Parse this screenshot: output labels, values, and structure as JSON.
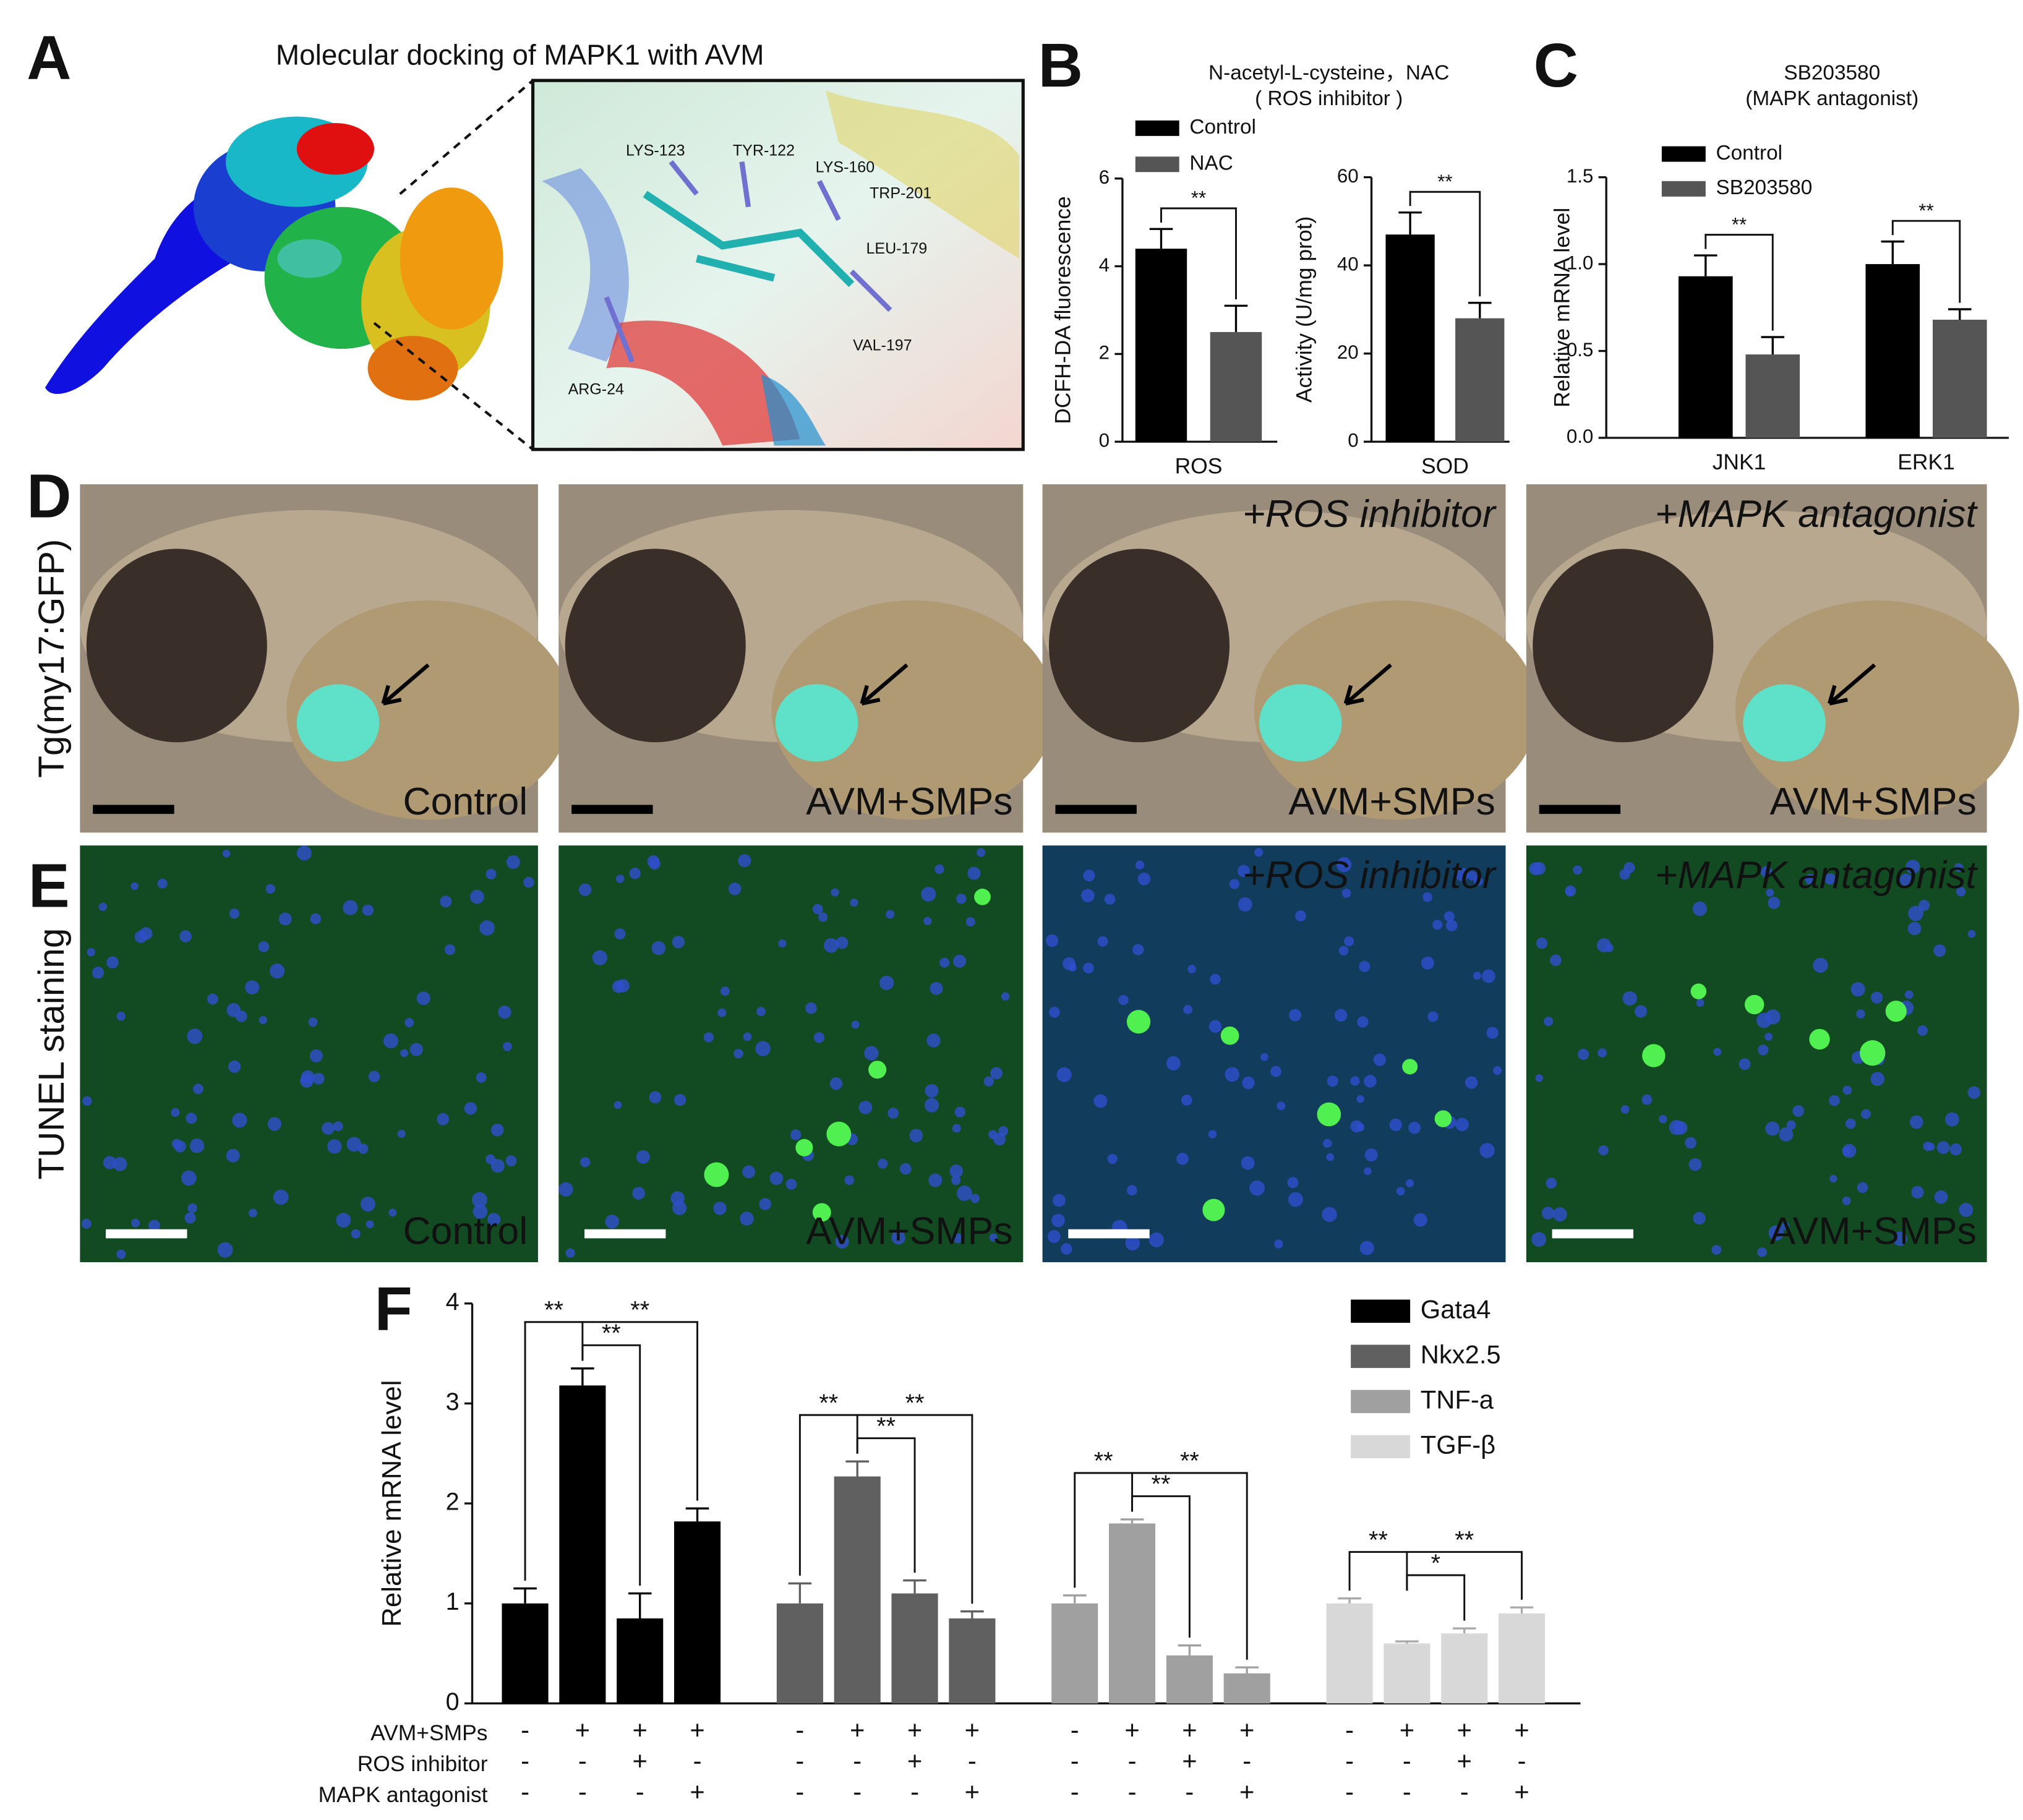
{
  "panels": {
    "A": {
      "label": "A",
      "title": "Molecular docking of MAPK1 with AVM",
      "residues": [
        "LYS-123",
        "TYR-122",
        "LYS-160",
        "TRP-201",
        "LEU-179",
        "VAL-197",
        "ARG-24"
      ]
    },
    "B": {
      "label": "B"
    },
    "C": {
      "label": "C"
    },
    "D": {
      "label": "D",
      "row_label": "Tg(my17:GFP)",
      "images": [
        {
          "caption": "Control"
        },
        {
          "caption": "AVM+SMPs"
        },
        {
          "treatment": "+ROS inhibitor",
          "caption": "AVM+SMPs"
        },
        {
          "treatment": "+MAPK antagonist",
          "caption": "AVM+SMPs"
        }
      ]
    },
    "E": {
      "label": "E",
      "row_label": "TUNEL staining",
      "images": [
        {
          "caption": "Control"
        },
        {
          "caption": "AVM+SMPs"
        },
        {
          "treatment": "+ROS inhibitor",
          "caption": ""
        },
        {
          "treatment": "+MAPK antagonist",
          "caption": "AVM+SMPs"
        }
      ]
    },
    "F": {
      "label": "F"
    }
  },
  "chart_data": [
    {
      "type": "bar",
      "title": [
        "N-acetyl-L-cysteine，NAC",
        "( ROS inhibitor )"
      ],
      "y_label": "DCFH-DA fluorescence",
      "categories": [
        "ROS"
      ],
      "series": [
        {
          "name": "Control",
          "color": "#000000",
          "values": [
            4.4
          ],
          "errors": [
            0.45
          ]
        },
        {
          "name": "NAC",
          "color": "#555555",
          "values": [
            2.5
          ],
          "errors": [
            0.6
          ]
        }
      ],
      "significance": [
        "**"
      ],
      "ylim": [
        0,
        6
      ],
      "yticks": [
        0,
        2,
        4,
        6
      ]
    },
    {
      "type": "bar",
      "y_label": "Activity (U/mg prot)",
      "categories": [
        "SOD"
      ],
      "series": [
        {
          "color": "#000000",
          "values": [
            47
          ],
          "errors": [
            5
          ]
        },
        {
          "color": "#555555",
          "values": [
            28
          ],
          "errors": [
            3.5
          ]
        }
      ],
      "significance": [
        "**"
      ],
      "ylim": [
        0,
        60
      ],
      "yticks": [
        0,
        20,
        40,
        60
      ]
    },
    {
      "type": "bar",
      "title": [
        "SB203580",
        "(MAPK antagonist)"
      ],
      "y_label": "Relative mRNA level",
      "categories": [
        "JNK1",
        "ERK1"
      ],
      "series": [
        {
          "name": "Control",
          "color": "#000000",
          "values": [
            0.93,
            1.0
          ],
          "errors": [
            0.12,
            0.13
          ]
        },
        {
          "name": "SB203580",
          "color": "#555555",
          "values": [
            0.48,
            0.68
          ],
          "errors": [
            0.1,
            0.06
          ]
        }
      ],
      "significance": [
        "**",
        "**"
      ],
      "ylim": [
        0,
        1.5
      ],
      "yticks": [
        {
          "value": 0,
          "label": "0.0"
        },
        0.5,
        {
          "value": 1,
          "label": "1.0"
        },
        1.5
      ]
    },
    {
      "type": "bar_conditions",
      "y_label": "Relative mRNA level",
      "series": [
        {
          "name": "Gata4",
          "color": "#000000",
          "values": [
            1.0,
            3.18,
            0.85,
            1.82
          ],
          "errors": [
            0.15,
            0.17,
            0.25,
            0.13
          ],
          "significance": [
            "**",
            "**",
            "**"
          ]
        },
        {
          "name": "Nkx2.5",
          "color": "#606060",
          "values": [
            1.0,
            2.27,
            1.1,
            0.85
          ],
          "errors": [
            0.2,
            0.15,
            0.13,
            0.07
          ],
          "significance": [
            "**",
            "**",
            "**"
          ]
        },
        {
          "name": "TNF-a",
          "color": "#a0a0a0",
          "values": [
            1.0,
            1.8,
            0.48,
            0.3
          ],
          "errors": [
            0.08,
            0.04,
            0.1,
            0.06
          ],
          "significance": [
            "**",
            "**",
            "**"
          ]
        },
        {
          "name": "TGF-β",
          "color": "#d8d8d8",
          "values": [
            1.0,
            0.6,
            0.7,
            0.9
          ],
          "errors": [
            0.05,
            0.02,
            0.05,
            0.06
          ],
          "significance": [
            "**",
            "*",
            "**"
          ]
        }
      ],
      "treatments": [
        {
          "name": "AVM+SMPs",
          "signs": [
            "-",
            "+",
            "+",
            "+"
          ]
        },
        {
          "name": "ROS inhibitor",
          "signs": [
            "-",
            "-",
            "+",
            "-"
          ]
        },
        {
          "name": "MAPK antagonist",
          "signs": [
            "-",
            "-",
            "-",
            "+"
          ]
        }
      ],
      "ylim": [
        0,
        4
      ],
      "yticks": [
        0,
        1,
        2,
        3,
        4
      ]
    }
  ]
}
